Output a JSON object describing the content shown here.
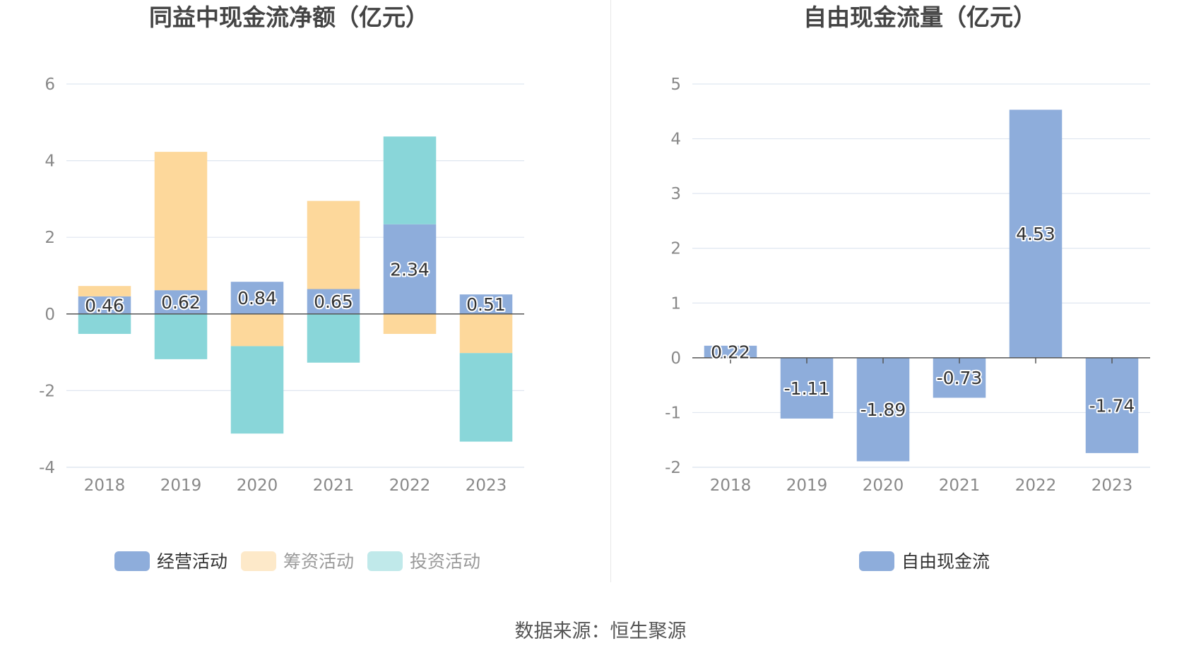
{
  "footer": {
    "source": "数据来源：恒生聚源"
  },
  "colors": {
    "operating": "#8eaddb",
    "financing": "#fdd89b",
    "investing": "#89d6d9",
    "investing_legend": "#c0e9ea",
    "financing_legend": "#fde9c9",
    "grid": "#dfe6f0",
    "axis_text": "#888888",
    "title": "#444444"
  },
  "chart_data": [
    {
      "type": "bar",
      "stacked": true,
      "title": "同益中现金流净额（亿元）",
      "categories": [
        "2018",
        "2019",
        "2020",
        "2021",
        "2022",
        "2023"
      ],
      "ylim": [
        -4,
        6
      ],
      "yticks": [
        -4,
        -2,
        0,
        2,
        4,
        6
      ],
      "series": [
        {
          "name": "经营活动",
          "values": [
            0.46,
            0.62,
            0.84,
            0.65,
            2.34,
            0.51
          ],
          "labeled": true
        },
        {
          "name": "筹资活动",
          "values": [
            0.27,
            3.61,
            -0.84,
            2.3,
            -0.52,
            -1.02
          ]
        },
        {
          "name": "投资活动",
          "values": [
            -0.52,
            -1.18,
            -2.28,
            -1.27,
            2.29,
            -2.31
          ]
        }
      ],
      "legend": "bottom"
    },
    {
      "type": "bar",
      "title": "自由现金流量（亿元）",
      "categories": [
        "2018",
        "2019",
        "2020",
        "2021",
        "2022",
        "2023"
      ],
      "ylim": [
        -2,
        5
      ],
      "yticks": [
        -2,
        -1,
        0,
        1,
        2,
        3,
        4,
        5
      ],
      "series": [
        {
          "name": "自由现金流",
          "values": [
            0.22,
            -1.11,
            -1.89,
            -0.73,
            4.53,
            -1.74
          ],
          "labeled": true
        }
      ],
      "legend": "bottom"
    }
  ]
}
